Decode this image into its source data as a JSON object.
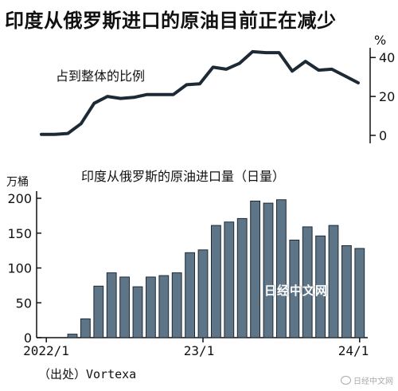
{
  "title": "印度从俄罗斯进口的原油目前正在减少",
  "source": "（出处）Vortexa",
  "watermark": "日经中文网",
  "corner_watermark": "日经中文网",
  "colors": {
    "line": "#1d2a36",
    "bar_fill": "#5e7487",
    "bar_stroke": "#1d2a36",
    "axis": "#111111"
  },
  "chart_data": [
    {
      "type": "line",
      "title": "占到整体的比例",
      "unit_label": "%",
      "ylim": [
        0,
        45
      ],
      "yticks": [
        0,
        20,
        40
      ],
      "x": [
        "2022/1",
        "2022/2",
        "2022/3",
        "2022/4",
        "2022/5",
        "2022/6",
        "2022/7",
        "2022/8",
        "2022/9",
        "2022/10",
        "2022/11",
        "2022/12",
        "2023/1",
        "2023/2",
        "2023/3",
        "2023/4",
        "2023/5",
        "2023/6",
        "2023/7",
        "2023/8",
        "2023/9",
        "2023/10",
        "2023/11",
        "2023/12",
        "2024/1"
      ],
      "values": [
        0.5,
        0.5,
        1,
        6,
        16.5,
        20,
        19,
        19.5,
        21,
        21,
        21,
        26,
        26.5,
        35,
        34,
        37,
        43,
        42.5,
        42.5,
        33,
        38,
        33.5,
        34,
        30.5,
        27
      ],
      "grid": false
    },
    {
      "type": "bar",
      "title": "印度从俄罗斯的原油进口量（日量）",
      "unit_label": "万桶",
      "ylim": [
        0,
        210
      ],
      "yticks": [
        0,
        50,
        100,
        150,
        200
      ],
      "x_tick_labels": [
        "2022/1",
        "23/1",
        "24/1"
      ],
      "categories": [
        "2022/1",
        "2022/2",
        "2022/3",
        "2022/4",
        "2022/5",
        "2022/6",
        "2022/7",
        "2022/8",
        "2022/9",
        "2022/10",
        "2022/11",
        "2022/12",
        "2023/1",
        "2023/2",
        "2023/3",
        "2023/4",
        "2023/5",
        "2023/6",
        "2023/7",
        "2023/8",
        "2023/9",
        "2023/10",
        "2023/11",
        "2023/12",
        "2024/1"
      ],
      "values": [
        0,
        0,
        5,
        27,
        74,
        93,
        87,
        73,
        87,
        89,
        93,
        122,
        126,
        161,
        166,
        171,
        196,
        193,
        198,
        140,
        159,
        146,
        161,
        132,
        128
      ],
      "grid": false
    }
  ]
}
